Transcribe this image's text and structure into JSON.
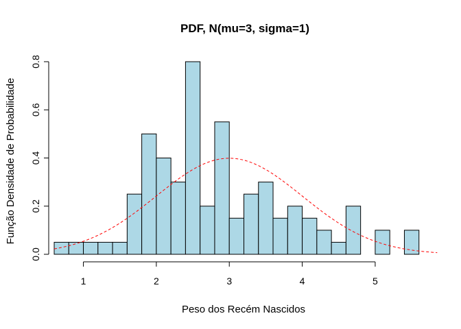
{
  "chart_data": {
    "type": "bar",
    "title": "PDF, N(mu=3, sigma=1)",
    "xlabel": "Peso dos Recém Nascidos",
    "ylabel": "Função Densidade de Probabilidade",
    "xlim": [
      0.6,
      5.8
    ],
    "ylim": [
      0,
      0.8
    ],
    "x_ticks": [
      1,
      2,
      3,
      4,
      5
    ],
    "x_tick_labels": [
      "1",
      "2",
      "3",
      "4",
      "5"
    ],
    "y_ticks": [
      0,
      0.2,
      0.4,
      0.6,
      0.8
    ],
    "y_tick_labels": [
      "0.0",
      "0.2",
      "0.4",
      "0.6",
      "0.8"
    ],
    "bin_edges": [
      0.6,
      0.8,
      1.0,
      1.2,
      1.4,
      1.6,
      1.8,
      2.0,
      2.2,
      2.4,
      2.6,
      2.8,
      3.0,
      3.2,
      3.4,
      3.6,
      3.8,
      4.0,
      4.2,
      4.4,
      4.6,
      4.8,
      5.0,
      5.2,
      5.4,
      5.6
    ],
    "values": [
      0.05,
      0.05,
      0.05,
      0.05,
      0.05,
      0.25,
      0.5,
      0.4,
      0.3,
      0.8,
      0.2,
      0.55,
      0.15,
      0.25,
      0.3,
      0.15,
      0.2,
      0.15,
      0.1,
      0.05,
      0.2,
      0,
      0.1,
      0,
      0.1
    ],
    "bar_color": "#add8e6",
    "curve": {
      "distribution": "normal",
      "mu": 3,
      "sigma": 1,
      "color": "#ff0000",
      "style": "dashed",
      "x_range": [
        0.6,
        5.85
      ]
    },
    "grid": false
  }
}
